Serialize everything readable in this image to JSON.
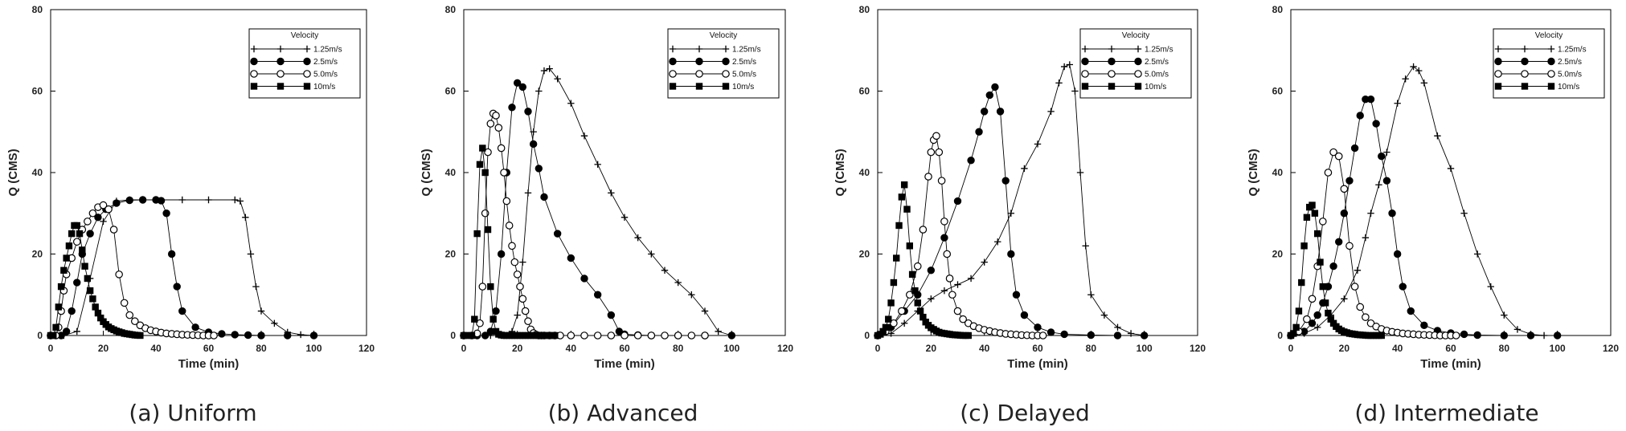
{
  "chart_data": [
    {
      "type": "line",
      "caption": "(a)  Uniform",
      "xlabel": "Time (min)",
      "ylabel": "Q (CMS)",
      "xlim": [
        0,
        120
      ],
      "ylim": [
        0,
        80
      ],
      "xticks": [
        "0",
        "20",
        "40",
        "60",
        "80",
        "100",
        "120"
      ],
      "yticks": [
        "0",
        "20",
        "40",
        "60",
        "80"
      ],
      "legend_title": "Velocity",
      "series": [
        {
          "name": "1.25m/s",
          "marker": "plus",
          "x": [
            0,
            5,
            10,
            15,
            20,
            25,
            30,
            40,
            50,
            60,
            70,
            72,
            74,
            76,
            78,
            80,
            85,
            90,
            95,
            100
          ],
          "y": [
            0,
            0,
            1,
            14,
            28,
            33,
            33.3,
            33.3,
            33.3,
            33.3,
            33.3,
            33,
            29,
            20,
            12,
            6,
            3,
            0.8,
            0.2,
            0
          ]
        },
        {
          "name": "2.5m/s",
          "marker": "filled-circle",
          "x": [
            0,
            4,
            6,
            8,
            10,
            12,
            15,
            18,
            21,
            25,
            30,
            35,
            40,
            42,
            44,
            46,
            48,
            50,
            55,
            60,
            65,
            70,
            75,
            80,
            90,
            100
          ],
          "y": [
            0,
            0,
            1,
            6,
            13,
            20,
            25,
            29,
            31,
            32.5,
            33.2,
            33.3,
            33.3,
            33.1,
            30,
            20,
            12,
            6,
            2,
            0.8,
            0.4,
            0.2,
            0.1,
            0,
            0,
            0
          ]
        },
        {
          "name": "5.0m/s",
          "marker": "open-circle",
          "x": [
            0,
            2,
            3,
            4,
            5,
            6,
            8,
            10,
            12,
            14,
            16,
            18,
            20,
            22,
            24,
            26,
            28,
            30,
            32,
            34,
            36,
            38,
            40,
            42,
            44,
            46,
            48,
            50,
            52,
            54,
            56,
            58,
            60,
            62
          ],
          "y": [
            0,
            0,
            2,
            6,
            11,
            15,
            19,
            23,
            26,
            28,
            30,
            31.5,
            32,
            31,
            26,
            15,
            8,
            5,
            3.5,
            2.5,
            1.8,
            1.3,
            1.0,
            0.7,
            0.5,
            0.4,
            0.3,
            0.2,
            0.15,
            0.1,
            0.05,
            0,
            0,
            0
          ]
        },
        {
          "name": "10m/s",
          "marker": "filled-square",
          "x": [
            0,
            1,
            2,
            3,
            4,
            5,
            6,
            7,
            8,
            9,
            10,
            11,
            12,
            13,
            14,
            15,
            16,
            17,
            18,
            19,
            20,
            21,
            22,
            23,
            24,
            25,
            26,
            27,
            28,
            29,
            30,
            31,
            32,
            33,
            34
          ],
          "y": [
            0,
            0,
            2,
            7,
            12,
            16,
            19,
            22,
            25,
            27,
            27,
            25,
            21,
            17,
            14,
            11,
            9,
            7,
            5.5,
            4.3,
            3.4,
            2.7,
            2.1,
            1.7,
            1.4,
            1.1,
            0.9,
            0.7,
            0.5,
            0.4,
            0.3,
            0.2,
            0.1,
            0.05,
            0
          ]
        }
      ]
    },
    {
      "type": "line",
      "caption": "(b)  Advanced",
      "xlabel": "Time (min)",
      "ylabel": "Q (CMS)",
      "xlim": [
        0,
        120
      ],
      "ylim": [
        0,
        80
      ],
      "xticks": [
        "0",
        "20",
        "40",
        "60",
        "80",
        "100",
        "120"
      ],
      "yticks": [
        "0",
        "20",
        "40",
        "60",
        "80"
      ],
      "legend_title": "Velocity",
      "series": [
        {
          "name": "1.25m/s",
          "marker": "plus",
          "x": [
            0,
            5,
            10,
            15,
            18,
            20,
            22,
            24,
            26,
            28,
            30,
            32,
            35,
            40,
            45,
            50,
            55,
            60,
            65,
            70,
            75,
            80,
            85,
            90,
            95,
            100
          ],
          "y": [
            0,
            0,
            0,
            0,
            1,
            5,
            18,
            35,
            50,
            60,
            65,
            65.5,
            63,
            57,
            49,
            42,
            35,
            29,
            24,
            20,
            16,
            13,
            10,
            6,
            1,
            0
          ]
        },
        {
          "name": "2.5m/s",
          "marker": "filled-circle",
          "x": [
            0,
            5,
            8,
            10,
            12,
            14,
            16,
            18,
            20,
            22,
            24,
            26,
            28,
            30,
            35,
            40,
            45,
            50,
            55,
            58,
            60,
            65,
            70,
            80,
            90,
            100
          ],
          "y": [
            0,
            0,
            0,
            1,
            6,
            20,
            40,
            56,
            62,
            61,
            55,
            47,
            41,
            34,
            25,
            19,
            14,
            10,
            5,
            1,
            0.3,
            0.1,
            0,
            0,
            0,
            0
          ]
        },
        {
          "name": "5.0m/s",
          "marker": "open-circle",
          "x": [
            0,
            3,
            5,
            6,
            7,
            8,
            9,
            10,
            11,
            12,
            13,
            14,
            15,
            16,
            17,
            18,
            19,
            20,
            21,
            22,
            23,
            24,
            25,
            26,
            27,
            28,
            29,
            30,
            32,
            34,
            36,
            40,
            45,
            50,
            55,
            60,
            65,
            70,
            75,
            80,
            85,
            90
          ],
          "y": [
            0,
            0,
            0.5,
            3,
            12,
            30,
            45,
            52,
            54.5,
            54,
            51,
            46,
            40,
            33,
            27,
            22,
            18,
            15,
            12,
            9,
            6,
            3.5,
            1.5,
            0.6,
            0.2,
            0,
            0,
            0,
            0,
            0,
            0,
            0,
            0,
            0,
            0,
            0,
            0,
            0,
            0,
            0,
            0,
            0
          ]
        },
        {
          "name": "10m/s",
          "marker": "filled-square",
          "x": [
            0,
            1,
            2,
            3,
            4,
            5,
            6,
            7,
            8,
            9,
            10,
            11,
            12,
            13,
            14,
            15,
            16,
            17,
            18,
            19,
            20,
            21,
            22,
            23,
            24,
            25,
            26,
            27,
            28,
            29,
            30,
            31,
            32,
            33,
            34
          ],
          "y": [
            0,
            0,
            0,
            0,
            4,
            25,
            42,
            46,
            40,
            26,
            12,
            4,
            1,
            0.3,
            0.1,
            0,
            0,
            0,
            0,
            0,
            0,
            0,
            0,
            0,
            0,
            0,
            0,
            0,
            0,
            0,
            0,
            0,
            0,
            0,
            0
          ]
        }
      ]
    },
    {
      "type": "line",
      "caption": "(c)  Delayed",
      "xlabel": "Time (min)",
      "ylabel": "Q (CMS)",
      "xlim": [
        0,
        120
      ],
      "ylim": [
        0,
        80
      ],
      "xticks": [
        "0",
        "20",
        "40",
        "60",
        "80",
        "100",
        "120"
      ],
      "yticks": [
        "0",
        "20",
        "40",
        "60",
        "80"
      ],
      "legend_title": "Velocity",
      "series": [
        {
          "name": "1.25m/s",
          "marker": "plus",
          "x": [
            0,
            5,
            10,
            15,
            20,
            25,
            30,
            35,
            40,
            45,
            50,
            55,
            60,
            65,
            68,
            70,
            72,
            74,
            76,
            78,
            80,
            85,
            90,
            95,
            100
          ],
          "y": [
            0,
            0.5,
            3,
            6,
            9,
            11,
            12.5,
            14,
            18,
            23,
            30,
            41,
            47,
            55,
            62,
            66,
            66.5,
            60,
            40,
            22,
            10,
            5,
            2,
            0.5,
            0
          ]
        },
        {
          "name": "2.5m/s",
          "marker": "filled-circle",
          "x": [
            0,
            5,
            10,
            15,
            20,
            25,
            30,
            35,
            38,
            40,
            42,
            44,
            46,
            48,
            50,
            52,
            55,
            60,
            65,
            70,
            80,
            90,
            100
          ],
          "y": [
            0,
            2,
            6,
            10,
            16,
            24,
            33,
            43,
            50,
            55,
            59,
            61,
            55,
            38,
            20,
            10,
            5,
            2,
            0.8,
            0.3,
            0.1,
            0,
            0
          ]
        },
        {
          "name": "5.0m/s",
          "marker": "open-circle",
          "x": [
            0,
            3,
            6,
            9,
            12,
            15,
            17,
            19,
            20,
            21,
            22,
            23,
            24,
            25,
            26,
            27,
            28,
            30,
            32,
            34,
            36,
            38,
            40,
            42,
            44,
            46,
            48,
            50,
            52,
            54,
            56,
            58,
            60,
            62
          ],
          "y": [
            0,
            1,
            3,
            6,
            10,
            17,
            26,
            39,
            45,
            48,
            49,
            45,
            38,
            28,
            20,
            14,
            10,
            6,
            4,
            3,
            2.3,
            1.8,
            1.4,
            1.1,
            0.8,
            0.6,
            0.4,
            0.3,
            0.2,
            0.1,
            0.05,
            0,
            0,
            0
          ]
        },
        {
          "name": "10m/s",
          "marker": "filled-square",
          "x": [
            0,
            1,
            2,
            3,
            4,
            5,
            6,
            7,
            8,
            9,
            10,
            11,
            12,
            13,
            14,
            15,
            16,
            17,
            18,
            19,
            20,
            21,
            22,
            23,
            24,
            25,
            26,
            27,
            28,
            29,
            30,
            31,
            32,
            33,
            34
          ],
          "y": [
            0,
            0.3,
            1,
            2,
            4,
            8,
            13,
            19,
            27,
            34,
            37,
            31,
            22,
            15,
            11,
            8,
            6,
            4.5,
            3.3,
            2.5,
            1.9,
            1.5,
            1.1,
            0.8,
            0.6,
            0.5,
            0.4,
            0.3,
            0.2,
            0.15,
            0.1,
            0.05,
            0,
            0,
            0
          ]
        }
      ]
    },
    {
      "type": "line",
      "caption": "(d)  Intermediate",
      "xlabel": "Time (min)",
      "ylabel": "Q (CMS)",
      "xlim": [
        0,
        120
      ],
      "ylim": [
        0,
        80
      ],
      "xticks": [
        "0",
        "20",
        "40",
        "60",
        "80",
        "100",
        "120"
      ],
      "yticks": [
        "0",
        "20",
        "40",
        "60",
        "80"
      ],
      "legend_title": "Velocity",
      "series": [
        {
          "name": "1.25m/s",
          "marker": "plus",
          "x": [
            0,
            5,
            10,
            15,
            20,
            25,
            28,
            30,
            33,
            36,
            40,
            43,
            46,
            48,
            50,
            55,
            60,
            65,
            70,
            75,
            80,
            85,
            90,
            95,
            100
          ],
          "y": [
            0,
            0.5,
            2,
            5,
            9,
            16,
            24,
            30,
            37,
            45,
            57,
            63,
            66,
            65,
            62,
            49,
            41,
            30,
            20,
            12,
            5,
            1.5,
            0.3,
            0,
            0
          ]
        },
        {
          "name": "2.5m/s",
          "marker": "filled-circle",
          "x": [
            0,
            5,
            8,
            10,
            12,
            14,
            16,
            18,
            20,
            22,
            24,
            26,
            28,
            30,
            32,
            34,
            36,
            38,
            40,
            42,
            45,
            50,
            55,
            60,
            65,
            70,
            80,
            90,
            100
          ],
          "y": [
            0,
            1,
            3,
            5,
            8,
            12,
            17,
            23,
            30,
            38,
            46,
            54,
            58,
            58,
            52,
            44,
            38,
            30,
            20,
            12,
            6,
            2.5,
            1.2,
            0.6,
            0.3,
            0.1,
            0,
            0,
            0
          ]
        },
        {
          "name": "5.0m/s",
          "marker": "open-circle",
          "x": [
            0,
            3,
            6,
            8,
            10,
            12,
            14,
            16,
            18,
            20,
            22,
            24,
            26,
            28,
            30,
            32,
            34,
            36,
            38,
            40,
            42,
            44,
            46,
            48,
            50,
            52,
            54,
            56,
            58,
            60,
            62
          ],
          "y": [
            0,
            1,
            4,
            9,
            17,
            28,
            40,
            45,
            44,
            36,
            22,
            12,
            7,
            4.5,
            3,
            2.2,
            1.6,
            1.2,
            0.9,
            0.7,
            0.5,
            0.4,
            0.3,
            0.2,
            0.15,
            0.1,
            0.05,
            0,
            0,
            0,
            0
          ]
        },
        {
          "name": "10m/s",
          "marker": "filled-square",
          "x": [
            0,
            1,
            2,
            3,
            4,
            5,
            6,
            7,
            8,
            9,
            10,
            11,
            12,
            13,
            14,
            15,
            16,
            17,
            18,
            19,
            20,
            21,
            22,
            23,
            24,
            25,
            26,
            27,
            28,
            29,
            30,
            31,
            32,
            33,
            34
          ],
          "y": [
            0,
            0.5,
            2,
            6,
            13,
            22,
            29,
            31.5,
            32,
            30,
            25,
            18,
            12,
            8,
            5.5,
            4,
            3,
            2.2,
            1.6,
            1.2,
            0.9,
            0.7,
            0.5,
            0.4,
            0.3,
            0.2,
            0.15,
            0.1,
            0.05,
            0,
            0,
            0,
            0,
            0,
            0
          ]
        }
      ]
    }
  ]
}
